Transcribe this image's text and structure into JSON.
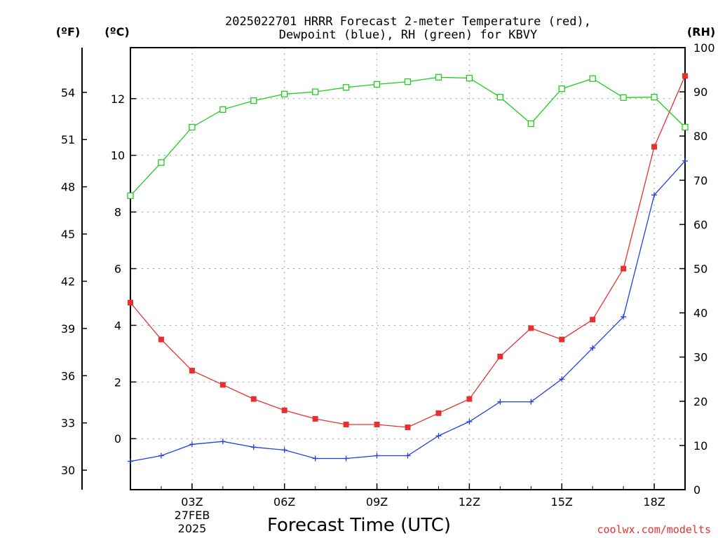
{
  "chart_data": {
    "type": "line",
    "title_lines": [
      "2025022701 HRRR Forecast 2-meter Temperature (red),",
      "Dewpoint (blue), RH (green) for KBVY"
    ],
    "xlabel": "Forecast Time (UTC)",
    "credit": "coolwx.com/modelts",
    "x_hours": [
      1,
      2,
      3,
      4,
      5,
      6,
      7,
      8,
      9,
      10,
      11,
      12,
      13,
      14,
      15,
      16,
      17,
      18,
      19
    ],
    "x_range": [
      1,
      19
    ],
    "x_ticks": [
      {
        "hour": 3,
        "label": "03Z"
      },
      {
        "hour": 6,
        "label": "06Z"
      },
      {
        "hour": 9,
        "label": "09Z"
      },
      {
        "hour": 12,
        "label": "12Z"
      },
      {
        "hour": 15,
        "label": "15Z"
      },
      {
        "hour": 18,
        "label": "18Z"
      }
    ],
    "date_label": [
      "27FEB",
      "2025"
    ],
    "axes": {
      "celsius": {
        "unit": "(ºC)",
        "range": [
          -1.8,
          13.8
        ],
        "ticks": [
          "0",
          "2",
          "4",
          "6",
          "8",
          "10",
          "12"
        ]
      },
      "fahrenheit": {
        "unit": "(ºF)",
        "ticks": [
          "30",
          "33",
          "36",
          "39",
          "42",
          "45",
          "48",
          "51",
          "54"
        ]
      },
      "rh": {
        "unit": "(RH)",
        "range": [
          0,
          100
        ],
        "ticks": [
          "0",
          "10",
          "20",
          "30",
          "40",
          "50",
          "60",
          "70",
          "80",
          "90",
          "100"
        ]
      }
    },
    "grid": true,
    "series": [
      {
        "name": "Temperature",
        "color": "#e83030",
        "marker": "filled-square",
        "axis": "celsius",
        "values": [
          4.8,
          3.5,
          2.4,
          1.9,
          1.4,
          1.0,
          0.7,
          0.5,
          0.5,
          0.4,
          0.9,
          1.4,
          2.9,
          3.9,
          3.5,
          4.2,
          6.0,
          10.3,
          12.8
        ]
      },
      {
        "name": "Dewpoint",
        "color": "#2040e0",
        "marker": "plus",
        "axis": "celsius",
        "values": [
          -0.8,
          -0.6,
          -0.2,
          -0.1,
          -0.3,
          -0.4,
          -0.7,
          -0.7,
          -0.6,
          -0.6,
          0.1,
          0.6,
          1.3,
          1.3,
          2.1,
          3.2,
          4.3,
          8.6,
          9.8
        ]
      },
      {
        "name": "RH",
        "color": "#20cc20",
        "marker": "open-square",
        "axis": "rh",
        "values": [
          66.5,
          74,
          82,
          86,
          88,
          89.5,
          90,
          91,
          91.7,
          92.3,
          93.3,
          93.1,
          88.8,
          82.8,
          90.7,
          93,
          88.7,
          88.8,
          82
        ]
      }
    ]
  }
}
